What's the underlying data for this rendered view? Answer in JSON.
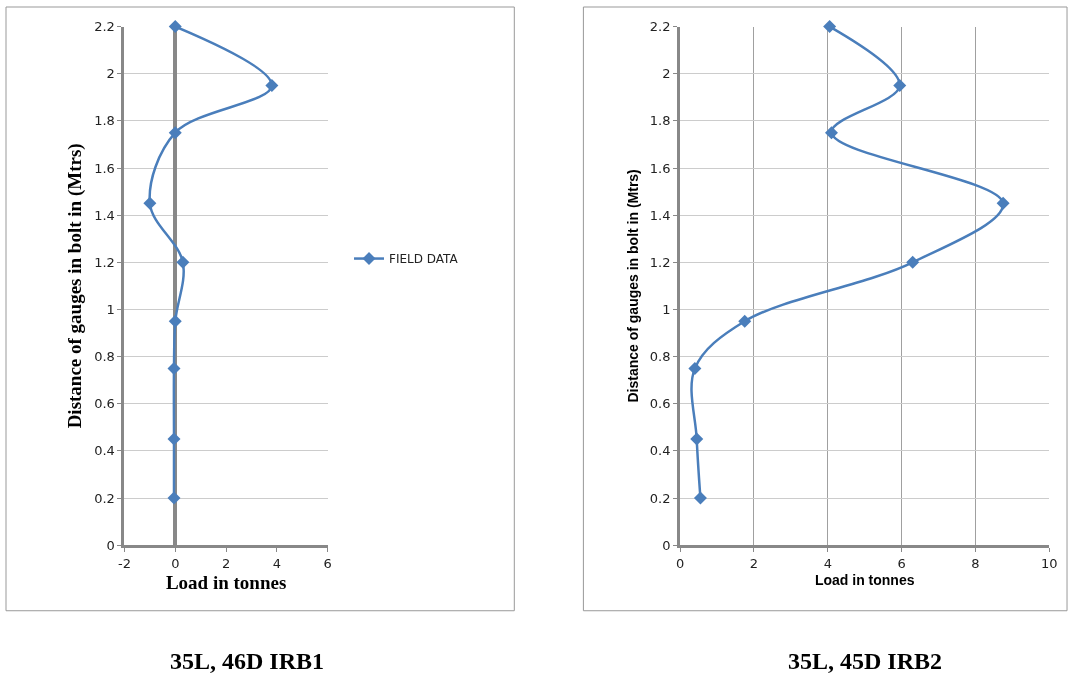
{
  "chart_data": [
    {
      "type": "line",
      "title": "35L, 46D IRB1",
      "xlabel": "Load in tonnes",
      "ylabel": "Distance of gauges in bolt in (Mtrs)",
      "series": [
        {
          "name": "FIELD DATA",
          "color": "#4a7ebb",
          "x": [
            -0.05,
            -0.05,
            -0.05,
            0,
            0.3,
            -1,
            0,
            3.8,
            0
          ],
          "values": [
            0.2,
            0.45,
            0.75,
            0.95,
            1.2,
            1.45,
            1.75,
            1.95,
            2.2
          ]
        }
      ],
      "xlim": [
        -2,
        6
      ],
      "xticks": [
        -2,
        0,
        2,
        4,
        6
      ],
      "ylim": [
        0,
        2.2
      ],
      "yticks": [
        0,
        0.2,
        0.4,
        0.6,
        0.8,
        1,
        1.2,
        1.4,
        1.6,
        1.8,
        2,
        2.2
      ],
      "grid": "y",
      "legend": "right",
      "marker": "diamond",
      "line_style": "solid"
    },
    {
      "type": "line",
      "title": "35L, 45D IRB2",
      "xlabel": "Load in tonnes",
      "ylabel": "Distance of gauges in bolt in (Mtrs)",
      "series": [
        {
          "color": "#4a7ebb",
          "x": [
            0.55,
            0.45,
            0.4,
            1.75,
            6.3,
            8.75,
            4.1,
            5.95,
            4.05
          ],
          "values": [
            0.2,
            0.45,
            0.75,
            0.95,
            1.2,
            1.45,
            1.75,
            1.95,
            2.2
          ]
        }
      ],
      "xlim": [
        0,
        10
      ],
      "xticks": [
        0,
        2,
        4,
        6,
        8,
        10
      ],
      "ylim": [
        0,
        2.2
      ],
      "yticks": [
        0,
        0.2,
        0.4,
        0.6,
        0.8,
        1,
        1.2,
        1.4,
        1.6,
        1.8,
        2,
        2.2
      ],
      "grid": true,
      "marker": "diamond",
      "line_style": "solid"
    }
  ]
}
